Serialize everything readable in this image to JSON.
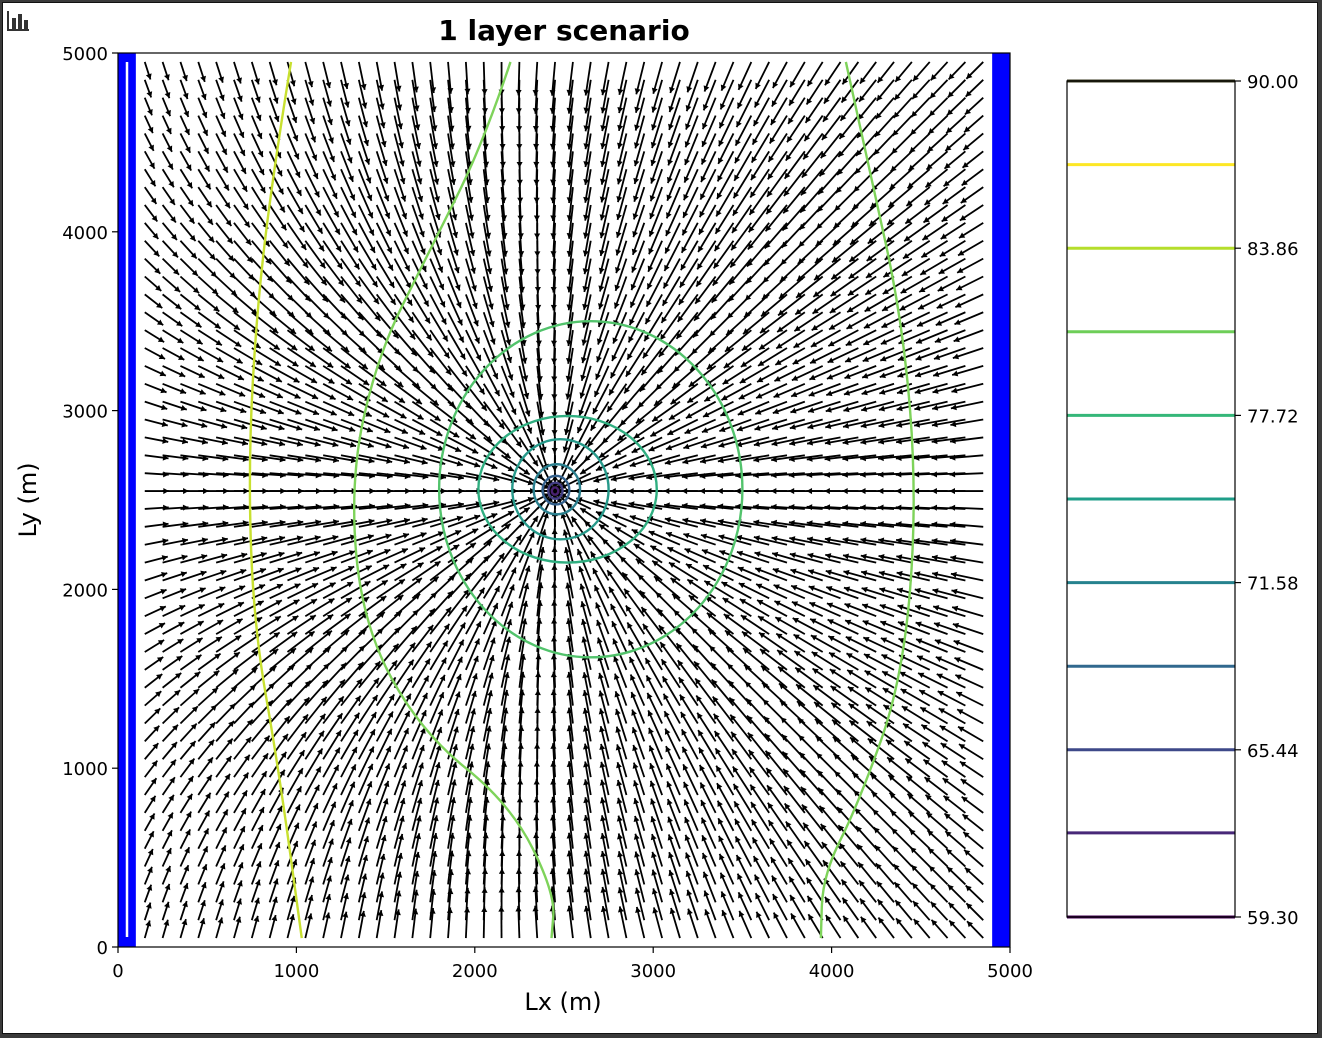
{
  "toolbar": {
    "icon": "bar-chart-icon"
  },
  "chart_data": {
    "type": "contour+quiver",
    "title": "1 layer scenario",
    "xlabel": "Lx (m)",
    "ylabel": "Ly (m)",
    "xlim": [
      0,
      5000
    ],
    "ylim": [
      0,
      5000
    ],
    "xticks": [
      0,
      1000,
      2000,
      3000,
      4000,
      5000
    ],
    "yticks": [
      0,
      1000,
      2000,
      3000,
      4000,
      5000
    ],
    "xtick_labels": [
      "0",
      "1000",
      "2000",
      "3000",
      "4000",
      "5000"
    ],
    "ytick_labels": [
      "0",
      "1000",
      "2000",
      "3000",
      "4000",
      "5000"
    ],
    "well": {
      "x": 2450,
      "y": 2550
    },
    "boundaries": [
      {
        "name": "left-constant-head",
        "x0": 0,
        "x1": 100,
        "color": "#0000ff"
      },
      {
        "name": "right-constant-head",
        "x0": 4900,
        "x1": 5000,
        "color": "#0000ff"
      }
    ],
    "contour_levels": [
      59.3,
      62.39,
      65.44,
      68.51,
      71.58,
      74.65,
      77.72,
      80.79,
      83.86,
      86.93,
      90.0
    ],
    "level_colors": [
      "#440154",
      "#482878",
      "#3e4989",
      "#31688e",
      "#26828e",
      "#1f9e89",
      "#35b779",
      "#6ece58",
      "#b5de2b",
      "#fde725",
      "#3a3a20"
    ],
    "contours": [
      {
        "level": 86.93,
        "color": "#c8e030",
        "shape": "line",
        "points": [
          [
            970,
            4950
          ],
          [
            880,
            4400
          ],
          [
            780,
            3600
          ],
          [
            730,
            2700
          ],
          [
            760,
            1800
          ],
          [
            900,
            1000
          ],
          [
            1030,
            50
          ]
        ]
      },
      {
        "level": 83.86,
        "color": "#7ed35a",
        "shape": "line",
        "points": [
          [
            2200,
            4950
          ],
          [
            2050,
            4500
          ],
          [
            1750,
            3900
          ],
          [
            1450,
            3300
          ],
          [
            1300,
            2600
          ],
          [
            1370,
            1800
          ],
          [
            1700,
            1200
          ],
          [
            2200,
            800
          ],
          [
            2450,
            300
          ],
          [
            2430,
            50
          ]
        ]
      },
      {
        "level": 83.86,
        "color": "#7ed35a",
        "shape": "line",
        "points": [
          [
            4080,
            4950
          ],
          [
            4200,
            4400
          ],
          [
            4400,
            3500
          ],
          [
            4480,
            2500
          ],
          [
            4400,
            1500
          ],
          [
            4150,
            800
          ],
          [
            3950,
            400
          ],
          [
            3940,
            50
          ]
        ]
      },
      {
        "level": 80.79,
        "color": "#52c36c",
        "shape": "ellipse",
        "cx": 2650,
        "cy": 2560,
        "rx": 850,
        "ry": 940
      },
      {
        "level": 77.72,
        "color": "#2fae80",
        "shape": "ellipse",
        "cx": 2520,
        "cy": 2560,
        "rx": 500,
        "ry": 410
      },
      {
        "level": 74.65,
        "color": "#26998a",
        "shape": "ellipse",
        "cx": 2480,
        "cy": 2560,
        "rx": 270,
        "ry": 280
      },
      {
        "level": 71.58,
        "color": "#2a7f8e",
        "shape": "ellipse",
        "cx": 2460,
        "cy": 2560,
        "rx": 130,
        "ry": 140
      },
      {
        "level": 68.51,
        "color": "#34618d",
        "shape": "ellipse",
        "cx": 2455,
        "cy": 2555,
        "rx": 75,
        "ry": 80
      },
      {
        "level": 65.44,
        "color": "#433e85",
        "shape": "ellipse",
        "cx": 2452,
        "cy": 2552,
        "rx": 40,
        "ry": 45
      },
      {
        "level": 62.39,
        "color": "#482070",
        "shape": "ellipse",
        "cx": 2450,
        "cy": 2550,
        "rx": 18,
        "ry": 20
      }
    ],
    "colorbar": {
      "tick_labels": [
        "90.00",
        "83.86",
        "77.72",
        "71.58",
        "65.44",
        "59.30"
      ],
      "tick_values": [
        90.0,
        83.86,
        77.72,
        71.58,
        65.44,
        59.3
      ],
      "line_levels": [
        59.3,
        62.39,
        65.44,
        68.51,
        71.58,
        74.65,
        77.72,
        80.79,
        83.86,
        86.93,
        90.0
      ]
    }
  }
}
